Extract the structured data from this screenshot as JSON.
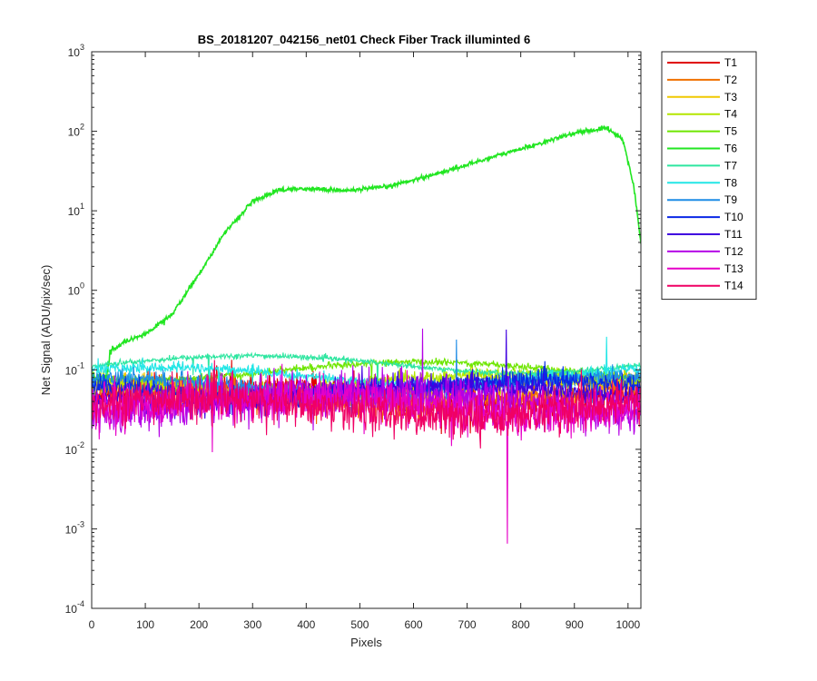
{
  "chart_data": {
    "type": "line",
    "title": "BS_20181207_042156_net01    Check Fiber      Track illuminted 6",
    "xlabel": "Pixels",
    "ylabel": "Net Signal (ADU/pix/sec)",
    "xlim": [
      0,
      1024
    ],
    "ylim": [
      0.0001,
      1000
    ],
    "yscale": "log",
    "grid": false,
    "legend_position": "outside-right",
    "x_ticks": [
      0,
      100,
      200,
      300,
      400,
      500,
      600,
      700,
      800,
      900,
      1000
    ],
    "y_ticks": [
      {
        "base": "10",
        "exp": "-4",
        "value": 0.0001
      },
      {
        "base": "10",
        "exp": "-3",
        "value": 0.001
      },
      {
        "base": "10",
        "exp": "-2",
        "value": 0.01
      },
      {
        "base": "10",
        "exp": "-1",
        "value": 0.1
      },
      {
        "base": "10",
        "exp": "0",
        "value": 1
      },
      {
        "base": "10",
        "exp": "1",
        "value": 10
      },
      {
        "base": "10",
        "exp": "2",
        "value": 100
      },
      {
        "base": "10",
        "exp": "3",
        "value": 1000
      }
    ],
    "series": [
      {
        "name": "T1",
        "color": "#e00000",
        "base": 0.05,
        "noise": 0.2
      },
      {
        "name": "T2",
        "color": "#f07000",
        "base": 0.048,
        "noise": 0.2
      },
      {
        "name": "T3",
        "color": "#f0c800",
        "base": 0.06,
        "noise": 0.15
      },
      {
        "name": "T4",
        "color": "#b4e600",
        "base": 0.07,
        "noise": 0.12
      },
      {
        "name": "T5",
        "color": "#6ee600",
        "base": 0.1,
        "noise": 0.05
      },
      {
        "name": "T6",
        "color": "#22e622",
        "base": 0.08,
        "noise": 0.03,
        "profile": [
          [
            0,
            0.08
          ],
          [
            10,
            0.075
          ],
          [
            28,
            0.08
          ],
          [
            35,
            0.17
          ],
          [
            60,
            0.22
          ],
          [
            100,
            0.28
          ],
          [
            150,
            0.5
          ],
          [
            200,
            1.6
          ],
          [
            250,
            5.5
          ],
          [
            300,
            13
          ],
          [
            350,
            18.5
          ],
          [
            400,
            19
          ],
          [
            480,
            18
          ],
          [
            550,
            20
          ],
          [
            650,
            30
          ],
          [
            750,
            48
          ],
          [
            850,
            75
          ],
          [
            900,
            95
          ],
          [
            960,
            110
          ],
          [
            990,
            80
          ],
          [
            1010,
            22
          ],
          [
            1024,
            4
          ]
        ]
      },
      {
        "name": "T7",
        "color": "#2ee6a0",
        "base": 0.12,
        "noise": 0.04
      },
      {
        "name": "T8",
        "color": "#22e6e6",
        "base": 0.085,
        "noise": 0.08
      },
      {
        "name": "T9",
        "color": "#1e8ce6",
        "base": 0.065,
        "noise": 0.12
      },
      {
        "name": "T10",
        "color": "#0a28e6",
        "base": 0.058,
        "noise": 0.15
      },
      {
        "name": "T11",
        "color": "#4000e0",
        "base": 0.05,
        "noise": 0.18
      },
      {
        "name": "T12",
        "color": "#b400e6",
        "base": 0.04,
        "noise": 0.3
      },
      {
        "name": "T13",
        "color": "#e600c8",
        "base": 0.036,
        "noise": 0.32
      },
      {
        "name": "T14",
        "color": "#f00064",
        "base": 0.034,
        "noise": 0.3
      }
    ]
  }
}
